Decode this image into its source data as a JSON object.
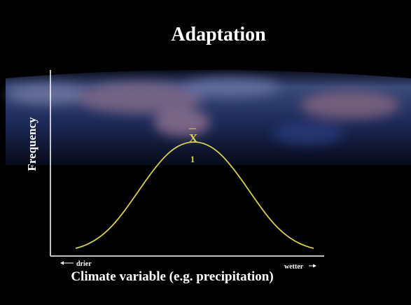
{
  "title": "Adaptation",
  "y_axis_label": "Frequency",
  "x_axis_label": "Climate variable (e.g. precipitation)",
  "x_left_label": "drier",
  "x_right_label": "wetter",
  "mean_label": "X",
  "mean_subscript": "1"
}
